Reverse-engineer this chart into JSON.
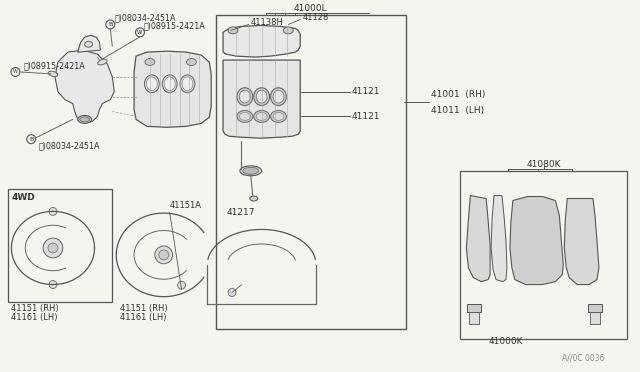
{
  "bg_color": "#f5f5f0",
  "line_color": "#555555",
  "text_color": "#222222",
  "fig_width": 6.4,
  "fig_height": 3.72,
  "dpi": 100,
  "labels": {
    "B08034_top": "Ⓑ)08034-2451A",
    "W08915_top": "Ⓦ)08915-2421A",
    "W08915_left": "Ⓥ)08915-2421A",
    "B08034_bottom": "Ⓑ)08034-2451A",
    "L41000L": "41000L",
    "L41128": "41128",
    "L41138H": "41138H",
    "L41121_top": "41121",
    "L41121_bot": "41121",
    "L41217": "41217",
    "L41001": "41001  (RH)",
    "L41011": "41011  (LH)",
    "L41080K": "41080K",
    "L41000K": "41000K",
    "L4WD": "4WD",
    "L41151_RH_1": "41151 (RH)",
    "L41161_LH_1": "41161 (LH)",
    "L41151_RH_2": "41151 (RH)",
    "L41161_LH_2": "41161 (LH)",
    "L41151A": "41151A",
    "watermark": "A//0C 0036"
  }
}
